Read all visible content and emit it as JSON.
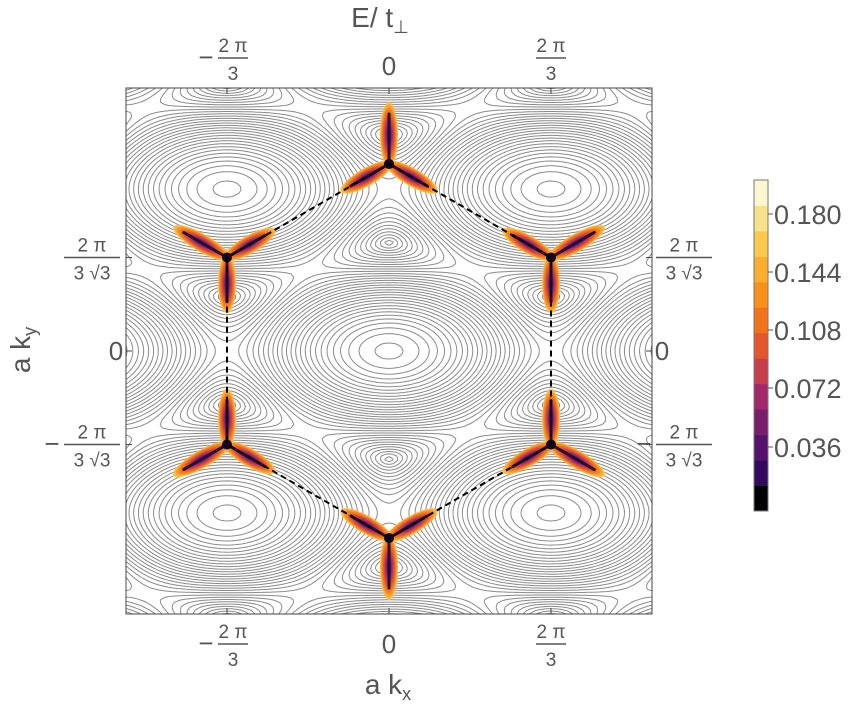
{
  "chart_data": {
    "type": "heatmap",
    "title": "E/ t",
    "title_subscript": "⊥",
    "xlabel": "a k",
    "xlabel_subscript": "x",
    "ylabel": "a k",
    "ylabel_subscript": "y",
    "xlim": [
      -3.4,
      3.4
    ],
    "ylim": [
      -3.4,
      3.4
    ],
    "x_ticks": [
      {
        "value": -2.0944,
        "sign": "−",
        "numerator": "2 π",
        "denominator": "3"
      },
      {
        "value": 0,
        "text": "0"
      },
      {
        "value": 2.0944,
        "sign": "",
        "numerator": "2 π",
        "denominator": "3"
      }
    ],
    "y_ticks": [
      {
        "value": 1.2092,
        "sign": "",
        "numerator": "2 π",
        "denominator": "3 √3"
      },
      {
        "value": 0,
        "text": "0"
      },
      {
        "value": -1.2092,
        "sign": "−",
        "numerator": "2 π",
        "denominator": "3 √3"
      }
    ],
    "colorbar": {
      "ticks": [
        "0.180",
        "0.144",
        "0.108",
        "0.072",
        "0.036"
      ],
      "colors": [
        "#000004",
        "#320a5e",
        "#55136e",
        "#7a1d6d",
        "#a1296a",
        "#c73e4c",
        "#e4562c",
        "#f07219",
        "#f8901c",
        "#fcad2f",
        "#fcc94d",
        "#f7e18b",
        "#fcf7d0"
      ]
    },
    "hotspots": [
      {
        "x": 0,
        "y": 2.418
      },
      {
        "x": 2.0944,
        "y": 1.2092
      },
      {
        "x": 2.0944,
        "y": -1.2092
      },
      {
        "x": 0,
        "y": -2.418
      },
      {
        "x": -2.0944,
        "y": -1.2092
      },
      {
        "x": -2.0944,
        "y": 1.2092
      }
    ],
    "grid": false,
    "legend": "right"
  }
}
